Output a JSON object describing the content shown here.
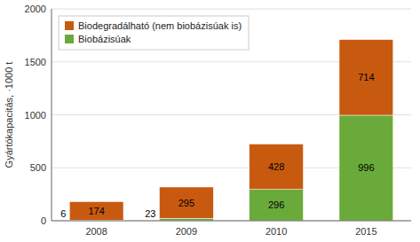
{
  "chart_data": {
    "type": "bar",
    "stacked": true,
    "categories": [
      "2008",
      "2009",
      "2010",
      "2015"
    ],
    "series": [
      {
        "name": "Biobázisúak",
        "color": "#6aaa3a",
        "values": [
          6,
          23,
          296,
          996
        ]
      },
      {
        "name": "Biodegradálható (nem biobázisúak is)",
        "color": "#c85a10",
        "values": [
          174,
          295,
          428,
          714
        ]
      }
    ],
    "ylabel": "Gyártókapacitás, ·1000 t",
    "ylim": [
      0,
      2000
    ],
    "yticks": [
      0,
      500,
      1000,
      1500,
      2000
    ],
    "grid": true,
    "legend": "upper left",
    "data_labels": true
  }
}
